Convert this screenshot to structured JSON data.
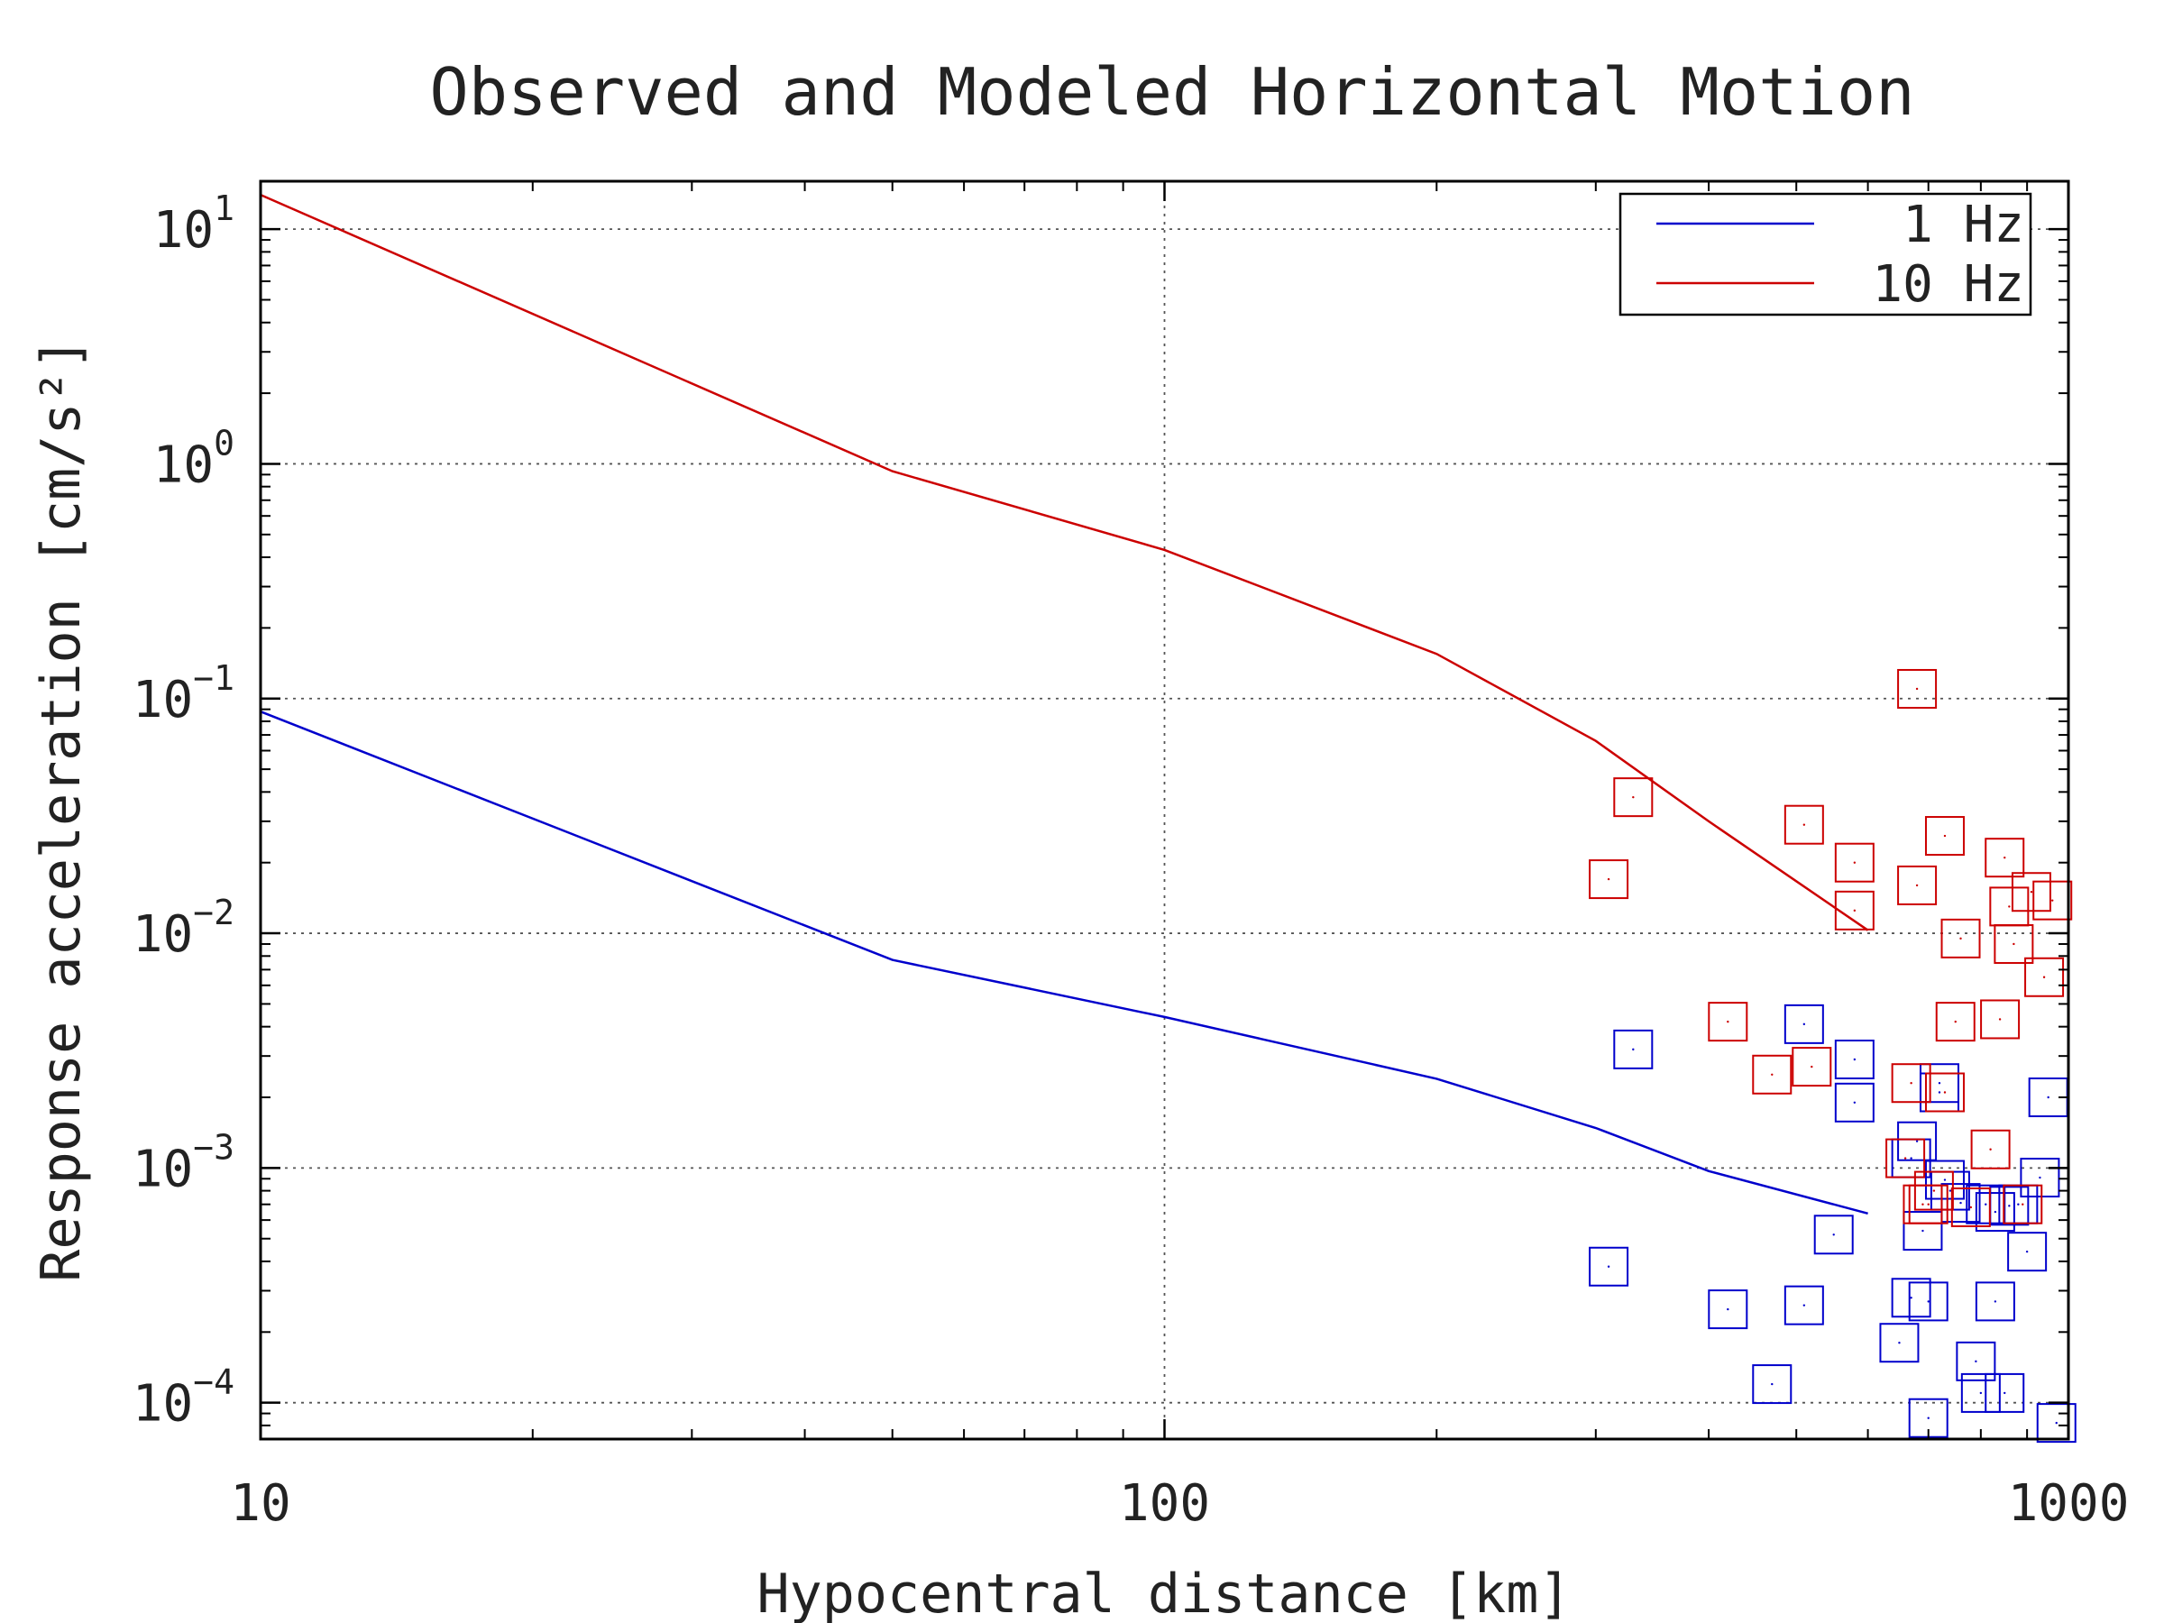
{
  "chart_data": {
    "type": "line",
    "title": "Observed and Modeled Horizontal Motion",
    "xlabel": "Hypocentral distance [km]",
    "ylabel": "Response acceleration [cm/s²]",
    "xscale": "log",
    "yscale": "log",
    "xlim": [
      10,
      1000
    ],
    "ylim": [
      7e-05,
      16
    ],
    "x_ticks": [
      {
        "value": 10,
        "label": "10"
      },
      {
        "value": 100,
        "label": "100"
      },
      {
        "value": 1000,
        "label": "1000"
      }
    ],
    "y_ticks": [
      {
        "value": 0.0001,
        "base": "10",
        "exp": "−4"
      },
      {
        "value": 0.001,
        "base": "10",
        "exp": "−3"
      },
      {
        "value": 0.01,
        "base": "10",
        "exp": "−2"
      },
      {
        "value": 0.1,
        "base": "10",
        "exp": "−1"
      },
      {
        "value": 1,
        "base": "10",
        "exp": "0"
      },
      {
        "value": 10,
        "base": "10",
        "exp": "1"
      }
    ],
    "grid": true,
    "legend": {
      "position": "top-right"
    },
    "series": [
      {
        "name": "1 Hz",
        "color": "#0000cc",
        "line": {
          "x": [
            10,
            50,
            100,
            200,
            300,
            400,
            600
          ],
          "y": [
            0.088,
            0.0077,
            0.0044,
            0.0024,
            0.00148,
            0.00097,
            0.00064
          ]
        },
        "observed": {
          "x": [
            310,
            330,
            420,
            470,
            510,
            510,
            550,
            580,
            580,
            650,
            670,
            670,
            680,
            690,
            700,
            700,
            720,
            720,
            730,
            740,
            760,
            790,
            800,
            810,
            830,
            830,
            850,
            860,
            880,
            900,
            930,
            950,
            970
          ],
          "y": [
            0.00038,
            0.0032,
            0.00025,
            0.00012,
            0.0041,
            0.00026,
            0.00052,
            0.0029,
            0.0019,
            0.00018,
            0.0011,
            0.00028,
            0.0013,
            0.00054,
            8.6e-05,
            0.00027,
            0.0023,
            0.0021,
            0.00089,
            0.0008,
            0.00071,
            0.00015,
            0.00011,
            0.0007,
            0.00065,
            0.00027,
            0.00011,
            0.00069,
            0.0007,
            0.00044,
            0.00091,
            0.002,
            8.2e-05
          ]
        }
      },
      {
        "name": "10 Hz",
        "color": "#cc0000",
        "line": {
          "x": [
            10,
            50,
            100,
            200,
            300,
            400,
            600
          ],
          "y": [
            14,
            0.93,
            0.43,
            0.155,
            0.066,
            0.03,
            0.0103
          ]
        },
        "observed": {
          "x": [
            310,
            330,
            420,
            470,
            510,
            520,
            580,
            580,
            660,
            670,
            680,
            680,
            690,
            700,
            710,
            730,
            730,
            750,
            760,
            780,
            820,
            840,
            850,
            860,
            870,
            890,
            910,
            940,
            960
          ],
          "y": [
            0.017,
            0.038,
            0.0042,
            0.0025,
            0.029,
            0.0027,
            0.02,
            0.0125,
            0.0011,
            0.0023,
            0.11,
            0.016,
            0.0007,
            0.0007,
            0.0008,
            0.026,
            0.0021,
            0.0042,
            0.0095,
            0.00068,
            0.0012,
            0.0043,
            0.021,
            0.013,
            0.009,
            0.0007,
            0.015,
            0.0065,
            0.0138
          ]
        }
      }
    ]
  }
}
